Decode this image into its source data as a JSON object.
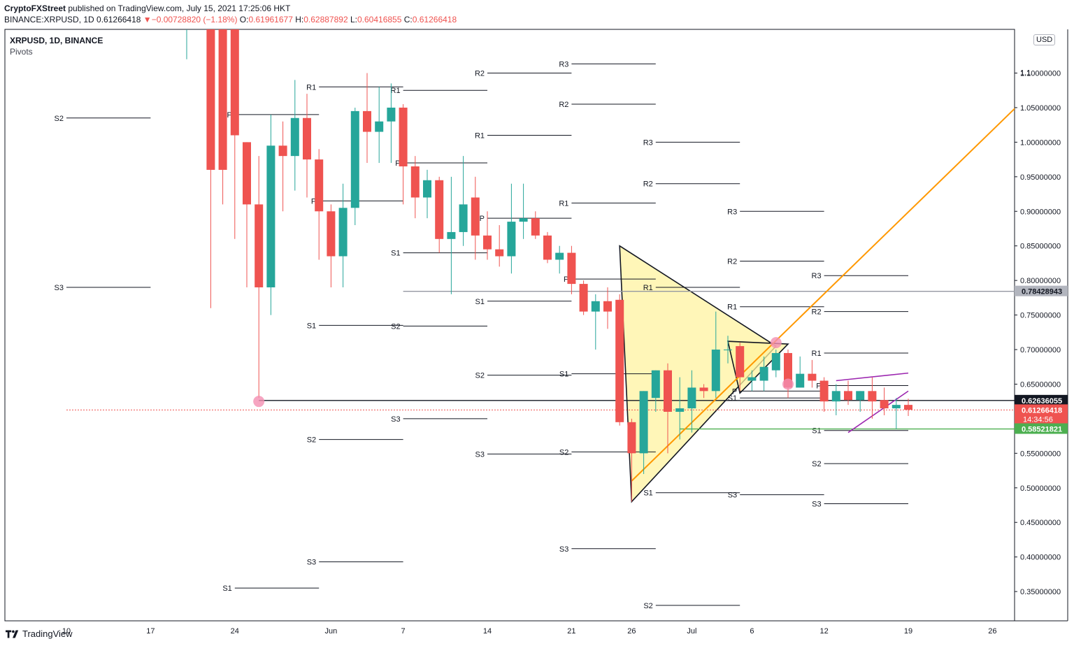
{
  "header": {
    "publisher": "CryptoFXStreet",
    "published_text": " published on TradingView.com, July 15, 2021 17:25:06 HKT",
    "symbol_line": "BINANCE:XRPUSD, 1D",
    "last": "0.61266418",
    "arrow": "▼",
    "change": "−0.00728820 (−1.18%)",
    "o_label": "O:",
    "o": "0.61961677",
    "h_label": "H:",
    "h": "0.62887892",
    "l_label": "L:",
    "l": "0.60416855",
    "c_label": "C:",
    "c": "0.61266418"
  },
  "panel": {
    "title": "XRPUSD, 1D, BINANCE",
    "indicator": "Pivots",
    "currency": "USD"
  },
  "footer": {
    "brand": "TradingView"
  },
  "colors": {
    "up": "#26a69a",
    "down": "#ef5350",
    "trend": "#ff9800",
    "triangle_fill": "#fff3a0",
    "wedge": "#9c27b0",
    "support_green": "#4caf50",
    "resistance_gray": "#9598a1"
  },
  "chart_data": {
    "type": "candlestick",
    "y_range": [
      0.33,
      1.1133
    ],
    "y_ticks": [
      "0.35000000",
      "0.40000000",
      "0.45000000",
      "0.50000000",
      "0.55000000",
      "0.60000000",
      "0.65000000",
      "0.70000000",
      "0.75000000",
      "0.80000000",
      "0.85000000",
      "0.90000000",
      "0.95000000",
      "1.00000000",
      "1.05000000",
      "1.10000000"
    ],
    "y_tick_values": [
      0.35,
      0.4,
      0.45,
      0.5,
      0.55,
      0.6,
      0.65,
      0.7,
      0.75,
      0.8,
      0.85,
      0.9,
      0.95,
      1.0,
      1.05,
      1.1
    ],
    "y_top_label": "1.1",
    "x_ticks": [
      {
        "label": "10",
        "day": 0
      },
      {
        "label": "17",
        "day": 7
      },
      {
        "label": "24",
        "day": 14
      },
      {
        "label": "Jun",
        "day": 22
      },
      {
        "label": "7",
        "day": 28
      },
      {
        "label": "14",
        "day": 35
      },
      {
        "label": "21",
        "day": 42
      },
      {
        "label": "26",
        "day": 47
      },
      {
        "label": "Jul",
        "day": 52
      },
      {
        "label": "6",
        "day": 57
      },
      {
        "label": "12",
        "day": 63
      },
      {
        "label": "19",
        "day": 70
      },
      {
        "label": "26",
        "day": 77
      }
    ],
    "price_labels": [
      {
        "value": 0.78428943,
        "text": "0.78428943",
        "bg": "#b2b5be",
        "fg": "#131722"
      },
      {
        "value": 0.62636055,
        "text": "0.62636055",
        "bg": "#131722",
        "fg": "#ffffff"
      },
      {
        "value": 0.61266418,
        "text": "0.61266418",
        "bg": "#ef5350",
        "fg": "#ffffff",
        "sub": "14:34:56"
      },
      {
        "value": 0.58521821,
        "text": "0.58521821",
        "bg": "#4caf50",
        "fg": "#ffffff"
      }
    ],
    "candles": [
      {
        "d": 10,
        "o": 1.17,
        "h": 1.22,
        "l": 1.12,
        "c": 1.18
      },
      {
        "d": 12,
        "o": 1.3,
        "h": 1.35,
        "l": 0.76,
        "c": 0.96
      },
      {
        "d": 13,
        "o": 1.22,
        "h": 1.25,
        "l": 0.91,
        "c": 0.96
      },
      {
        "d": 14,
        "o": 1.2,
        "h": 1.25,
        "l": 0.86,
        "c": 1.01
      },
      {
        "d": 15,
        "o": 1.0,
        "h": 1.0,
        "l": 0.79,
        "c": 0.91
      },
      {
        "d": 16,
        "o": 0.91,
        "h": 0.98,
        "l": 0.63,
        "c": 0.79
      },
      {
        "d": 17,
        "o": 0.79,
        "h": 1.04,
        "l": 0.75,
        "c": 0.995
      },
      {
        "d": 18,
        "o": 0.995,
        "h": 1.03,
        "l": 0.9,
        "c": 0.98
      },
      {
        "d": 19,
        "o": 0.98,
        "h": 1.09,
        "l": 0.93,
        "c": 1.035
      },
      {
        "d": 20,
        "o": 1.035,
        "h": 1.07,
        "l": 0.92,
        "c": 0.975
      },
      {
        "d": 21,
        "o": 0.975,
        "h": 0.99,
        "l": 0.83,
        "c": 0.9
      },
      {
        "d": 22,
        "o": 0.9,
        "h": 0.91,
        "l": 0.79,
        "c": 0.835
      },
      {
        "d": 23,
        "o": 0.835,
        "h": 0.94,
        "l": 0.79,
        "c": 0.905
      },
      {
        "d": 24,
        "o": 0.905,
        "h": 1.05,
        "l": 0.88,
        "c": 1.045
      },
      {
        "d": 25,
        "o": 1.045,
        "h": 1.1,
        "l": 0.97,
        "c": 1.015
      },
      {
        "d": 26,
        "o": 1.015,
        "h": 1.08,
        "l": 0.97,
        "c": 1.03
      },
      {
        "d": 27,
        "o": 1.03,
        "h": 1.085,
        "l": 0.97,
        "c": 1.05
      },
      {
        "d": 28,
        "o": 1.05,
        "h": 1.055,
        "l": 0.91,
        "c": 0.965
      },
      {
        "d": 29,
        "o": 0.965,
        "h": 0.98,
        "l": 0.89,
        "c": 0.92
      },
      {
        "d": 30,
        "o": 0.92,
        "h": 0.96,
        "l": 0.89,
        "c": 0.945
      },
      {
        "d": 31,
        "o": 0.945,
        "h": 0.95,
        "l": 0.84,
        "c": 0.86
      },
      {
        "d": 32,
        "o": 0.86,
        "h": 0.95,
        "l": 0.78,
        "c": 0.87
      },
      {
        "d": 33,
        "o": 0.87,
        "h": 0.98,
        "l": 0.85,
        "c": 0.91
      },
      {
        "d": 34,
        "o": 0.92,
        "h": 0.95,
        "l": 0.83,
        "c": 0.865
      },
      {
        "d": 35,
        "o": 0.865,
        "h": 0.9,
        "l": 0.83,
        "c": 0.845
      },
      {
        "d": 36,
        "o": 0.845,
        "h": 0.88,
        "l": 0.82,
        "c": 0.835
      },
      {
        "d": 37,
        "o": 0.835,
        "h": 0.94,
        "l": 0.81,
        "c": 0.885
      },
      {
        "d": 38,
        "o": 0.885,
        "h": 0.94,
        "l": 0.86,
        "c": 0.89
      },
      {
        "d": 39,
        "o": 0.89,
        "h": 0.9,
        "l": 0.86,
        "c": 0.865
      },
      {
        "d": 40,
        "o": 0.865,
        "h": 0.87,
        "l": 0.825,
        "c": 0.83
      },
      {
        "d": 41,
        "o": 0.83,
        "h": 0.85,
        "l": 0.81,
        "c": 0.84
      },
      {
        "d": 42,
        "o": 0.84,
        "h": 0.85,
        "l": 0.78,
        "c": 0.795
      },
      {
        "d": 43,
        "o": 0.795,
        "h": 0.8,
        "l": 0.75,
        "c": 0.755
      },
      {
        "d": 44,
        "o": 0.755,
        "h": 0.78,
        "l": 0.7,
        "c": 0.77
      },
      {
        "d": 45,
        "o": 0.77,
        "h": 0.79,
        "l": 0.73,
        "c": 0.755
      },
      {
        "d": 46,
        "o": 0.772,
        "h": 0.78,
        "l": 0.59,
        "c": 0.595
      },
      {
        "d": 47,
        "o": 0.595,
        "h": 0.6,
        "l": 0.48,
        "c": 0.55
      },
      {
        "d": 48,
        "o": 0.55,
        "h": 0.64,
        "l": 0.52,
        "c": 0.64
      },
      {
        "d": 49,
        "o": 0.63,
        "h": 0.67,
        "l": 0.61,
        "c": 0.67
      },
      {
        "d": 50,
        "o": 0.67,
        "h": 0.68,
        "l": 0.55,
        "c": 0.61
      },
      {
        "d": 51,
        "o": 0.61,
        "h": 0.66,
        "l": 0.57,
        "c": 0.615
      },
      {
        "d": 52,
        "o": 0.615,
        "h": 0.67,
        "l": 0.58,
        "c": 0.645
      },
      {
        "d": 53,
        "o": 0.645,
        "h": 0.65,
        "l": 0.63,
        "c": 0.64
      },
      {
        "d": 54,
        "o": 0.64,
        "h": 0.755,
        "l": 0.63,
        "c": 0.7
      },
      {
        "d": 55,
        "o": 0.7,
        "h": 0.72,
        "l": 0.68,
        "c": 0.7
      },
      {
        "d": 56,
        "o": 0.705,
        "h": 0.71,
        "l": 0.64,
        "c": 0.66
      },
      {
        "d": 57,
        "o": 0.655,
        "h": 0.67,
        "l": 0.64,
        "c": 0.66
      },
      {
        "d": 58,
        "o": 0.655,
        "h": 0.69,
        "l": 0.64,
        "c": 0.675
      },
      {
        "d": 59,
        "o": 0.67,
        "h": 0.7,
        "l": 0.66,
        "c": 0.695
      },
      {
        "d": 60,
        "o": 0.695,
        "h": 0.7,
        "l": 0.63,
        "c": 0.645
      },
      {
        "d": 61,
        "o": 0.645,
        "h": 0.69,
        "l": 0.645,
        "c": 0.665
      },
      {
        "d": 62,
        "o": 0.665,
        "h": 0.685,
        "l": 0.645,
        "c": 0.655
      },
      {
        "d": 63,
        "o": 0.655,
        "h": 0.66,
        "l": 0.61,
        "c": 0.625
      },
      {
        "d": 64,
        "o": 0.625,
        "h": 0.65,
        "l": 0.605,
        "c": 0.64
      },
      {
        "d": 65,
        "o": 0.64,
        "h": 0.655,
        "l": 0.62,
        "c": 0.627
      },
      {
        "d": 66,
        "o": 0.627,
        "h": 0.64,
        "l": 0.61,
        "c": 0.64
      },
      {
        "d": 67,
        "o": 0.64,
        "h": 0.66,
        "l": 0.6,
        "c": 0.625
      },
      {
        "d": 68,
        "o": 0.627,
        "h": 0.645,
        "l": 0.605,
        "c": 0.615
      },
      {
        "d": 69,
        "o": 0.615,
        "h": 0.63,
        "l": 0.585,
        "c": 0.62
      },
      {
        "d": 70,
        "o": 0.62,
        "h": 0.629,
        "l": 0.604,
        "c": 0.613
      }
    ],
    "pivot_periods": [
      {
        "d1": 0,
        "d2": 7,
        "levels": [
          {
            "n": "S2",
            "v": 1.035
          },
          {
            "n": "S3",
            "v": 0.79
          }
        ]
      },
      {
        "d1": 14,
        "d2": 21,
        "levels": [
          {
            "n": "P",
            "v": 1.04
          },
          {
            "n": "S1",
            "v": 0.355
          }
        ]
      },
      {
        "d1": 21,
        "d2": 28,
        "levels": [
          {
            "n": "R1",
            "v": 1.08
          },
          {
            "n": "P",
            "v": 0.915
          },
          {
            "n": "S1",
            "v": 0.735
          },
          {
            "n": "S2",
            "v": 0.57
          },
          {
            "n": "S3",
            "v": 0.393
          }
        ]
      },
      {
        "d1": 28,
        "d2": 35,
        "levels": [
          {
            "n": "R1",
            "v": 1.075
          },
          {
            "n": "P",
            "v": 0.97
          },
          {
            "n": "S1",
            "v": 0.84
          },
          {
            "n": "S2",
            "v": 0.734
          },
          {
            "n": "S3",
            "v": 0.6
          }
        ]
      },
      {
        "d1": 35,
        "d2": 42,
        "levels": [
          {
            "n": "R2",
            "v": 1.1
          },
          {
            "n": "R1",
            "v": 1.01
          },
          {
            "n": "P",
            "v": 0.89
          },
          {
            "n": "S1",
            "v": 0.77
          },
          {
            "n": "S2",
            "v": 0.663
          },
          {
            "n": "S3",
            "v": 0.549
          }
        ]
      },
      {
        "d1": 42,
        "d2": 49,
        "levels": [
          {
            "n": "R3",
            "v": 1.1133
          },
          {
            "n": "R2",
            "v": 1.055
          },
          {
            "n": "R1",
            "v": 0.912
          },
          {
            "n": "P",
            "v": 0.802
          },
          {
            "n": "S1",
            "v": 0.665
          },
          {
            "n": "S2",
            "v": 0.552
          },
          {
            "n": "S3",
            "v": 0.412
          }
        ]
      },
      {
        "d1": 49,
        "d2": 56,
        "levels": [
          {
            "n": "R3",
            "v": 1.0
          },
          {
            "n": "R2",
            "v": 0.94
          },
          {
            "n": "R1",
            "v": 0.79
          },
          {
            "n": "S1",
            "v": 0.493
          },
          {
            "n": "S2",
            "v": 0.33
          }
        ]
      },
      {
        "d1": 56,
        "d2": 63,
        "levels": [
          {
            "n": "R3",
            "v": 0.9
          },
          {
            "n": "R2",
            "v": 0.828
          },
          {
            "n": "R1",
            "v": 0.762
          },
          {
            "n": "P",
            "v": 0.64
          },
          {
            "n": "S1",
            "v": 0.63
          },
          {
            "n": "S3",
            "v": 0.49
          }
        ]
      },
      {
        "d1": 63,
        "d2": 70,
        "levels": [
          {
            "n": "R3",
            "v": 0.807
          },
          {
            "n": "R2",
            "v": 0.755
          },
          {
            "n": "R1",
            "v": 0.695
          },
          {
            "n": "P",
            "v": 0.648
          },
          {
            "n": "S1",
            "v": 0.583
          },
          {
            "n": "S2",
            "v": 0.535
          },
          {
            "n": "S3",
            "v": 0.477
          }
        ]
      }
    ],
    "horizontal_lines": [
      {
        "y": 0.78428943,
        "d1": 28,
        "d2": null,
        "color": "#9598a1"
      },
      {
        "y": 0.62636055,
        "d1": 16,
        "d2": null,
        "color": "#131722"
      },
      {
        "y": 0.58521821,
        "d1": 51,
        "d2": null,
        "color": "#4caf50"
      },
      {
        "y": 0.61266418,
        "d1": 0,
        "d2": null,
        "color": "#ef5350",
        "dashed": true
      }
    ],
    "trend_line": {
      "d1": 47,
      "v1": 0.51,
      "d2": 81,
      "v2": 1.085
    },
    "triangle_big": [
      [
        46,
        0.85
      ],
      [
        47,
        0.48
      ],
      [
        59,
        0.705
      ]
    ],
    "triangle_small": [
      [
        55,
        0.712
      ],
      [
        56,
        0.637
      ],
      [
        60,
        0.708
      ]
    ],
    "wedge": {
      "upper": [
        [
          64,
          0.655
        ],
        [
          70,
          0.666
        ]
      ],
      "lower": [
        [
          65,
          0.58
        ],
        [
          70,
          0.64
        ]
      ]
    },
    "markers": [
      {
        "d": 16,
        "v": 0.625
      },
      {
        "d": 59,
        "v": 0.71
      },
      {
        "d": 60,
        "v": 0.65
      }
    ]
  }
}
